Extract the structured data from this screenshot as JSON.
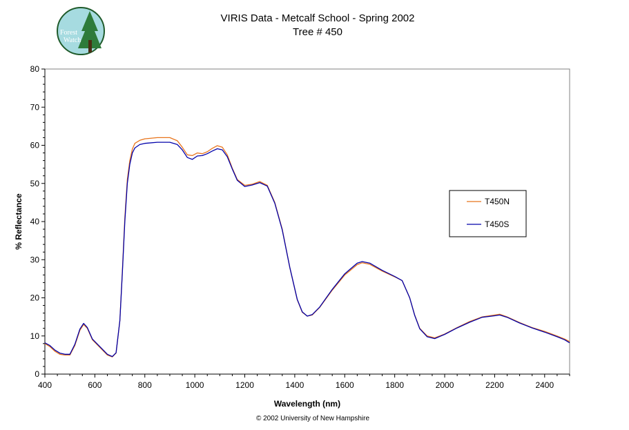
{
  "chart_data": {
    "type": "line",
    "title": "VIRIS Data - Metcalf School - Spring 2002",
    "subtitle": "Tree # 450",
    "xlabel": "Wavelength (nm)",
    "ylabel": "% Reflectance",
    "xlim": [
      400,
      2500
    ],
    "ylim": [
      0,
      80
    ],
    "x_ticks": [
      400,
      600,
      800,
      1000,
      1200,
      1400,
      1600,
      1800,
      2000,
      2200,
      2400
    ],
    "y_ticks": [
      0,
      10,
      20,
      30,
      40,
      50,
      60,
      70,
      80
    ],
    "grid": false,
    "legend_position": "right",
    "series": [
      {
        "name": "T450N",
        "color": "#e8731a",
        "x": [
          400,
          420,
          440,
          460,
          480,
          500,
          520,
          540,
          555,
          570,
          590,
          620,
          650,
          670,
          685,
          700,
          710,
          720,
          730,
          740,
          750,
          760,
          780,
          800,
          850,
          900,
          930,
          950,
          970,
          990,
          1010,
          1030,
          1050,
          1070,
          1090,
          1110,
          1130,
          1150,
          1170,
          1200,
          1230,
          1260,
          1290,
          1320,
          1350,
          1380,
          1410,
          1430,
          1450,
          1470,
          1500,
          1550,
          1600,
          1650,
          1670,
          1700,
          1750,
          1800,
          1830,
          1860,
          1880,
          1900,
          1930,
          1960,
          2000,
          2050,
          2100,
          2150,
          2200,
          2220,
          2250,
          2300,
          2350,
          2400,
          2450,
          2480,
          2500
        ],
        "values": [
          8,
          7.2,
          6,
          5.2,
          5,
          5,
          7.5,
          11.5,
          13,
          12,
          9,
          7,
          5,
          4.5,
          5.5,
          14,
          27,
          41,
          51,
          56,
          59,
          60.5,
          61.3,
          61.7,
          62,
          62,
          61.2,
          59.5,
          57.5,
          57.3,
          58,
          57.8,
          58.3,
          59.2,
          59.9,
          59.5,
          57.5,
          54,
          51,
          49.5,
          49.8,
          50.5,
          49.5,
          45,
          38,
          28,
          19.5,
          16.2,
          15.2,
          15.5,
          17.5,
          22,
          26,
          28.7,
          29.2,
          28.8,
          27,
          25.5,
          24.5,
          20,
          15.5,
          12,
          10,
          9.5,
          10.5,
          12.2,
          13.8,
          15,
          15.5,
          15.7,
          15,
          13.5,
          12.2,
          11.2,
          10,
          9.2,
          8.5
        ]
      },
      {
        "name": "T450S",
        "color": "#0000aa",
        "x": [
          400,
          420,
          440,
          460,
          480,
          500,
          520,
          540,
          555,
          570,
          590,
          620,
          650,
          670,
          685,
          700,
          710,
          720,
          730,
          740,
          750,
          760,
          780,
          800,
          850,
          900,
          930,
          950,
          970,
          990,
          1010,
          1030,
          1050,
          1070,
          1090,
          1110,
          1130,
          1150,
          1170,
          1200,
          1230,
          1260,
          1290,
          1320,
          1350,
          1380,
          1410,
          1430,
          1450,
          1470,
          1500,
          1550,
          1600,
          1650,
          1670,
          1700,
          1750,
          1800,
          1830,
          1860,
          1880,
          1900,
          1930,
          1960,
          2000,
          2050,
          2100,
          2150,
          2200,
          2220,
          2250,
          2300,
          2350,
          2400,
          2450,
          2480,
          2500
        ],
        "values": [
          8.2,
          7.5,
          6.3,
          5.5,
          5.2,
          5.2,
          7.8,
          11.8,
          13.3,
          12.2,
          9.2,
          7.2,
          5.2,
          4.6,
          5.6,
          14,
          26.5,
          40,
          50,
          55,
          58,
          59.3,
          60.2,
          60.5,
          60.8,
          60.8,
          60.2,
          58.8,
          56.8,
          56.3,
          57.2,
          57.3,
          57.8,
          58.5,
          59.1,
          58.8,
          57,
          53.8,
          50.8,
          49.2,
          49.6,
          50.2,
          49.3,
          44.8,
          37.8,
          28,
          19.6,
          16.3,
          15.2,
          15.6,
          17.6,
          22.2,
          26.3,
          29.1,
          29.5,
          29.1,
          27.2,
          25.6,
          24.5,
          20,
          15.4,
          11.9,
          9.8,
          9.3,
          10.4,
          12.1,
          13.6,
          14.9,
          15.3,
          15.5,
          14.9,
          13.4,
          12.1,
          11,
          9.8,
          9,
          8.2
        ]
      }
    ]
  },
  "logo": {
    "line1": "Forest",
    "line2": "Watch"
  },
  "footer": "© 2002 University of New Hampshire"
}
